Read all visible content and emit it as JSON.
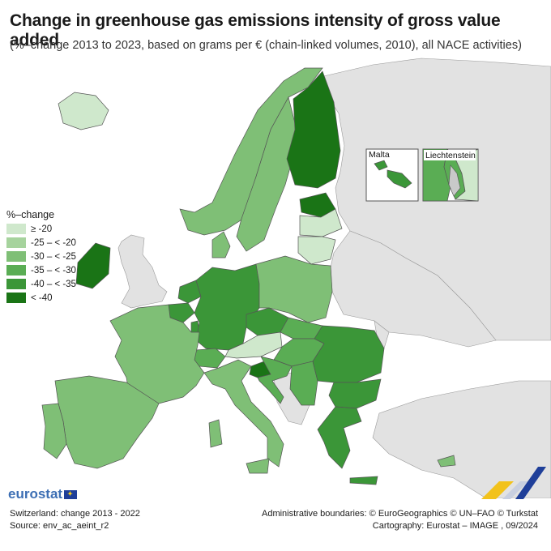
{
  "header": {
    "title": "Change in greenhouse gas emissions intensity of gross value added",
    "subtitle": "(%–change 2013 to 2023, based on grams per € (chain-linked volumes, 2010), all NACE activities)"
  },
  "legend": {
    "title": "%–change",
    "classes": [
      {
        "label": "≥ -20",
        "color": "#cfe8cc"
      },
      {
        "label": "-25 – < -20",
        "color": "#a6d39d"
      },
      {
        "label": "-30 – < -25",
        "color": "#7fbf76"
      },
      {
        "label": "-35 – < -30",
        "color": "#5aad54"
      },
      {
        "label": "-40 – < -35",
        "color": "#3b9638"
      },
      {
        "label": "< -40",
        "color": "#1a7416"
      }
    ]
  },
  "colors": {
    "non_eu": "#e2e2e2",
    "sea": "#ffffff",
    "border": "#555555"
  },
  "insets": {
    "malta": "Malta",
    "liechtenstein": "Liechtenstein"
  },
  "countries": {
    "Iceland": "≥ -20",
    "Norway": "-30 – < -25",
    "Sweden": "-30 – < -25",
    "Finland": "< -40",
    "Estonia": "< -40",
    "Latvia": "≥ -20",
    "Lithuania": "≥ -20",
    "Denmark": "-30 – < -25",
    "Ireland": "< -40",
    "Netherlands": "-40 – < -35",
    "Belgium": "-40 – < -35",
    "Luxembourg": "-40 – < -35",
    "Germany": "-40 – < -35",
    "Poland": "-30 – < -25",
    "Czechia": "-40 – < -35",
    "Slovakia": "-35 – < -30",
    "Hungary": "-35 – < -30",
    "Austria": "≥ -20",
    "Switzerland": "-35 – < -30",
    "Liechtenstein": "-35 – < -30",
    "France": "-30 – < -25",
    "Spain": "-30 – < -25",
    "Portugal": "-30 – < -25",
    "Italy": "-30 – < -25",
    "Malta": "-40 – < -35",
    "Slovenia": "< -40",
    "Croatia": "-35 – < -30",
    "Serbia": "-35 – < -30",
    "Romania": "-40 – < -35",
    "Bulgaria": "-40 – < -35",
    "Greece": "-40 – < -35",
    "Cyprus": "-30 – < -25"
  },
  "branding": {
    "logo": "eurostat"
  },
  "footer": {
    "note": "Switzerland: change 2013 - 2022",
    "source": "Source: env_ac_aeint_r2",
    "boundaries": "Administrative boundaries: © EuroGeographics © UN–FAO © Turkstat",
    "cartography": "Cartography: Eurostat – IMAGE , 09/2024"
  }
}
